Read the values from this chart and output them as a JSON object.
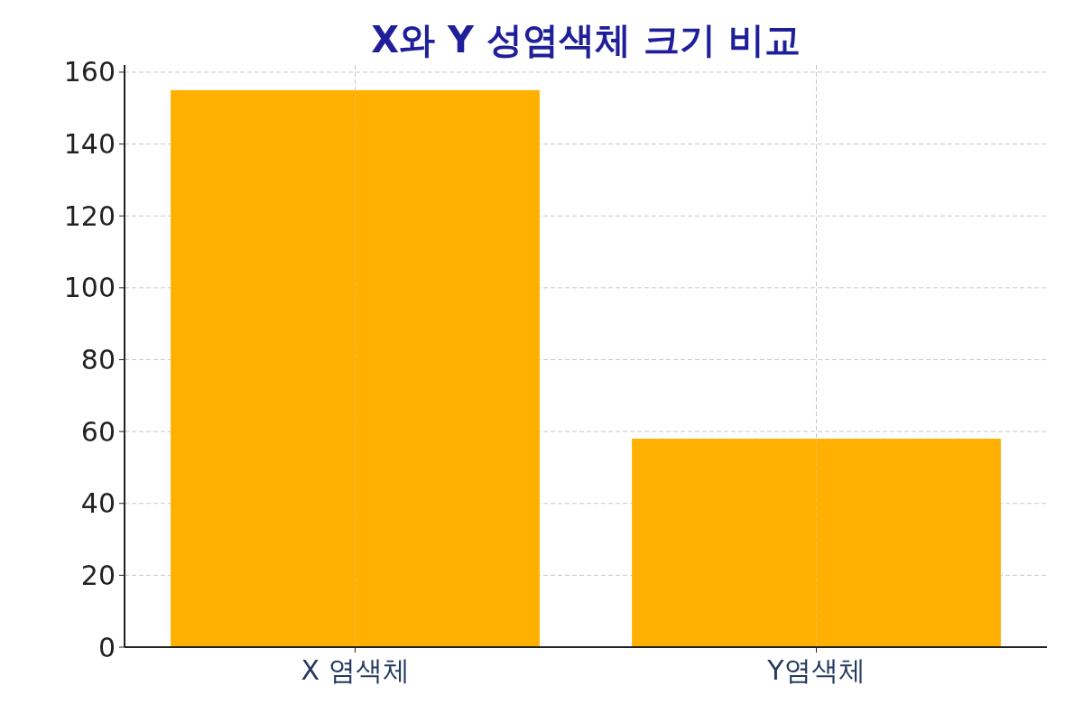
{
  "chart_data": {
    "type": "bar",
    "title": "X와 Y 성염색체 크기 비교",
    "categories": [
      "X 염색체",
      "Y염색체"
    ],
    "values": [
      155,
      58
    ],
    "color": "#ffb000",
    "ylim": [
      0,
      162
    ],
    "yticks": [
      0,
      20,
      40,
      60,
      80,
      100,
      120,
      140,
      160
    ],
    "grid": true
  }
}
